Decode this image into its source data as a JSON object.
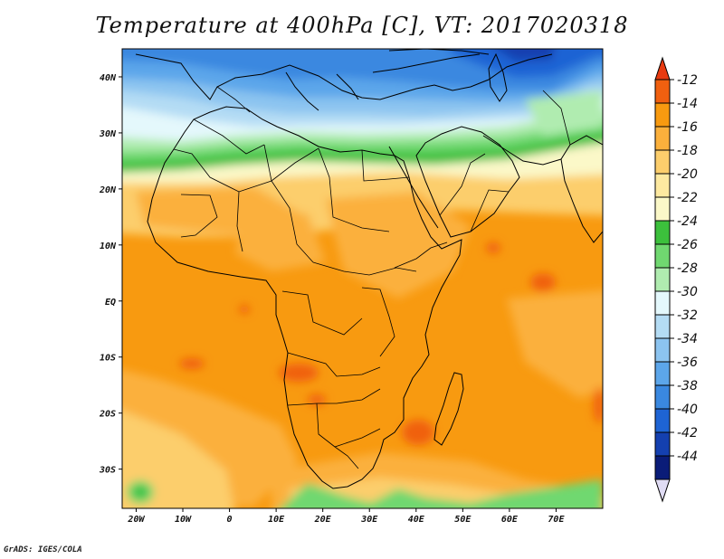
{
  "title": "Temperature at 400hPa [C], VT: 2017020318",
  "credit": "GrADS: IGES/COLA",
  "map": {
    "lon_range": [
      -23,
      80
    ],
    "lat_range": [
      -37,
      45
    ],
    "lon_ticks": [
      {
        "lon": -20,
        "label": "20W"
      },
      {
        "lon": -10,
        "label": "10W"
      },
      {
        "lon": 0,
        "label": "0"
      },
      {
        "lon": 10,
        "label": "10E"
      },
      {
        "lon": 20,
        "label": "20E"
      },
      {
        "lon": 30,
        "label": "30E"
      },
      {
        "lon": 40,
        "label": "40E"
      },
      {
        "lon": 50,
        "label": "50E"
      },
      {
        "lon": 60,
        "label": "60E"
      },
      {
        "lon": 70,
        "label": "70E"
      }
    ],
    "lat_ticks": [
      {
        "lat": 40,
        "label": "40N"
      },
      {
        "lat": 30,
        "label": "30N"
      },
      {
        "lat": 20,
        "label": "20N"
      },
      {
        "lat": 10,
        "label": "10N"
      },
      {
        "lat": 0,
        "label": "EQ"
      },
      {
        "lat": -10,
        "label": "10S"
      },
      {
        "lat": -20,
        "label": "20S"
      },
      {
        "lat": -30,
        "label": "30S"
      }
    ]
  },
  "colorbar": {
    "levels": [
      {
        "label": "-12",
        "color": "#f06010"
      },
      {
        "label": "-14",
        "color": "#f89a10"
      },
      {
        "label": "-16",
        "color": "#fbb03c"
      },
      {
        "label": "-18",
        "color": "#fcce6c"
      },
      {
        "label": "-20",
        "color": "#fde9a0"
      },
      {
        "label": "-22",
        "color": "#fbf8c8"
      },
      {
        "label": "-24",
        "color": "#3cc03c"
      },
      {
        "label": "-26",
        "color": "#70d870"
      },
      {
        "label": "-28",
        "color": "#b0ecb0"
      },
      {
        "label": "-30",
        "color": "#e4f8fc"
      },
      {
        "label": "-32",
        "color": "#b4dcf4"
      },
      {
        "label": "-34",
        "color": "#8cc4f0"
      },
      {
        "label": "-36",
        "color": "#5ca6ea"
      },
      {
        "label": "-38",
        "color": "#3a88e0"
      },
      {
        "label": "-40",
        "color": "#1e64d4"
      },
      {
        "label": "-42",
        "color": "#1440b0"
      },
      {
        "label": "-44",
        "color": "#0a1c78"
      }
    ],
    "top_arrow_color": "#e83a10",
    "bottom_arrow_color": "#e0dcf4"
  }
}
